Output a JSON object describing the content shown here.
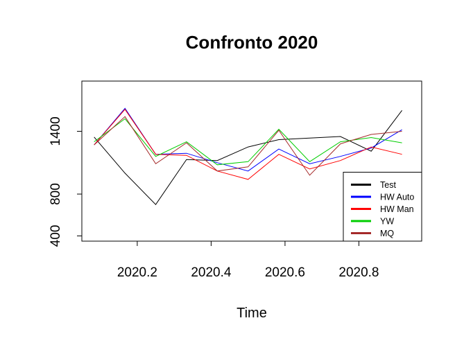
{
  "chart_data": {
    "type": "line",
    "title": "Confronto 2020",
    "xlabel": "Time",
    "ylabel": "",
    "xlim": [
      2020.05,
      2020.97
    ],
    "ylim": [
      350,
      1880
    ],
    "xticks": [
      2020.2,
      2020.4,
      2020.6,
      2020.8
    ],
    "xtick_labels": [
      "2020.2",
      "2020.4",
      "2020.6",
      "2020.8"
    ],
    "yticks": [
      400,
      800,
      1400
    ],
    "ytick_labels": [
      "400",
      "800",
      "1400"
    ],
    "x": [
      2020.0833,
      2020.1667,
      2020.25,
      2020.3333,
      2020.4167,
      2020.5,
      2020.5833,
      2020.6667,
      2020.75,
      2020.8333,
      2020.9167
    ],
    "series": [
      {
        "name": "Test",
        "color": "#000000",
        "values": [
          1345,
          1000,
          700,
          1130,
          1120,
          1250,
          1320,
          1335,
          1350,
          1210,
          1600
        ]
      },
      {
        "name": "HW Auto",
        "color": "#0000ff",
        "values": [
          1270,
          1620,
          1180,
          1190,
          1100,
          1020,
          1230,
          1090,
          1160,
          1240,
          1415
        ]
      },
      {
        "name": "HW Man",
        "color": "#ff0000",
        "values": [
          1270,
          1610,
          1180,
          1170,
          1020,
          940,
          1180,
          1040,
          1120,
          1250,
          1180
        ]
      },
      {
        "name": "YW",
        "color": "#00cd00",
        "values": [
          1300,
          1520,
          1160,
          1300,
          1080,
          1110,
          1420,
          1110,
          1300,
          1340,
          1290
        ]
      },
      {
        "name": "MQ",
        "color": "#a52a2a",
        "values": [
          1270,
          1540,
          1090,
          1290,
          1020,
          1060,
          1410,
          980,
          1280,
          1370,
          1400
        ]
      }
    ],
    "legend_placement": "bottom-right",
    "grid": false
  }
}
